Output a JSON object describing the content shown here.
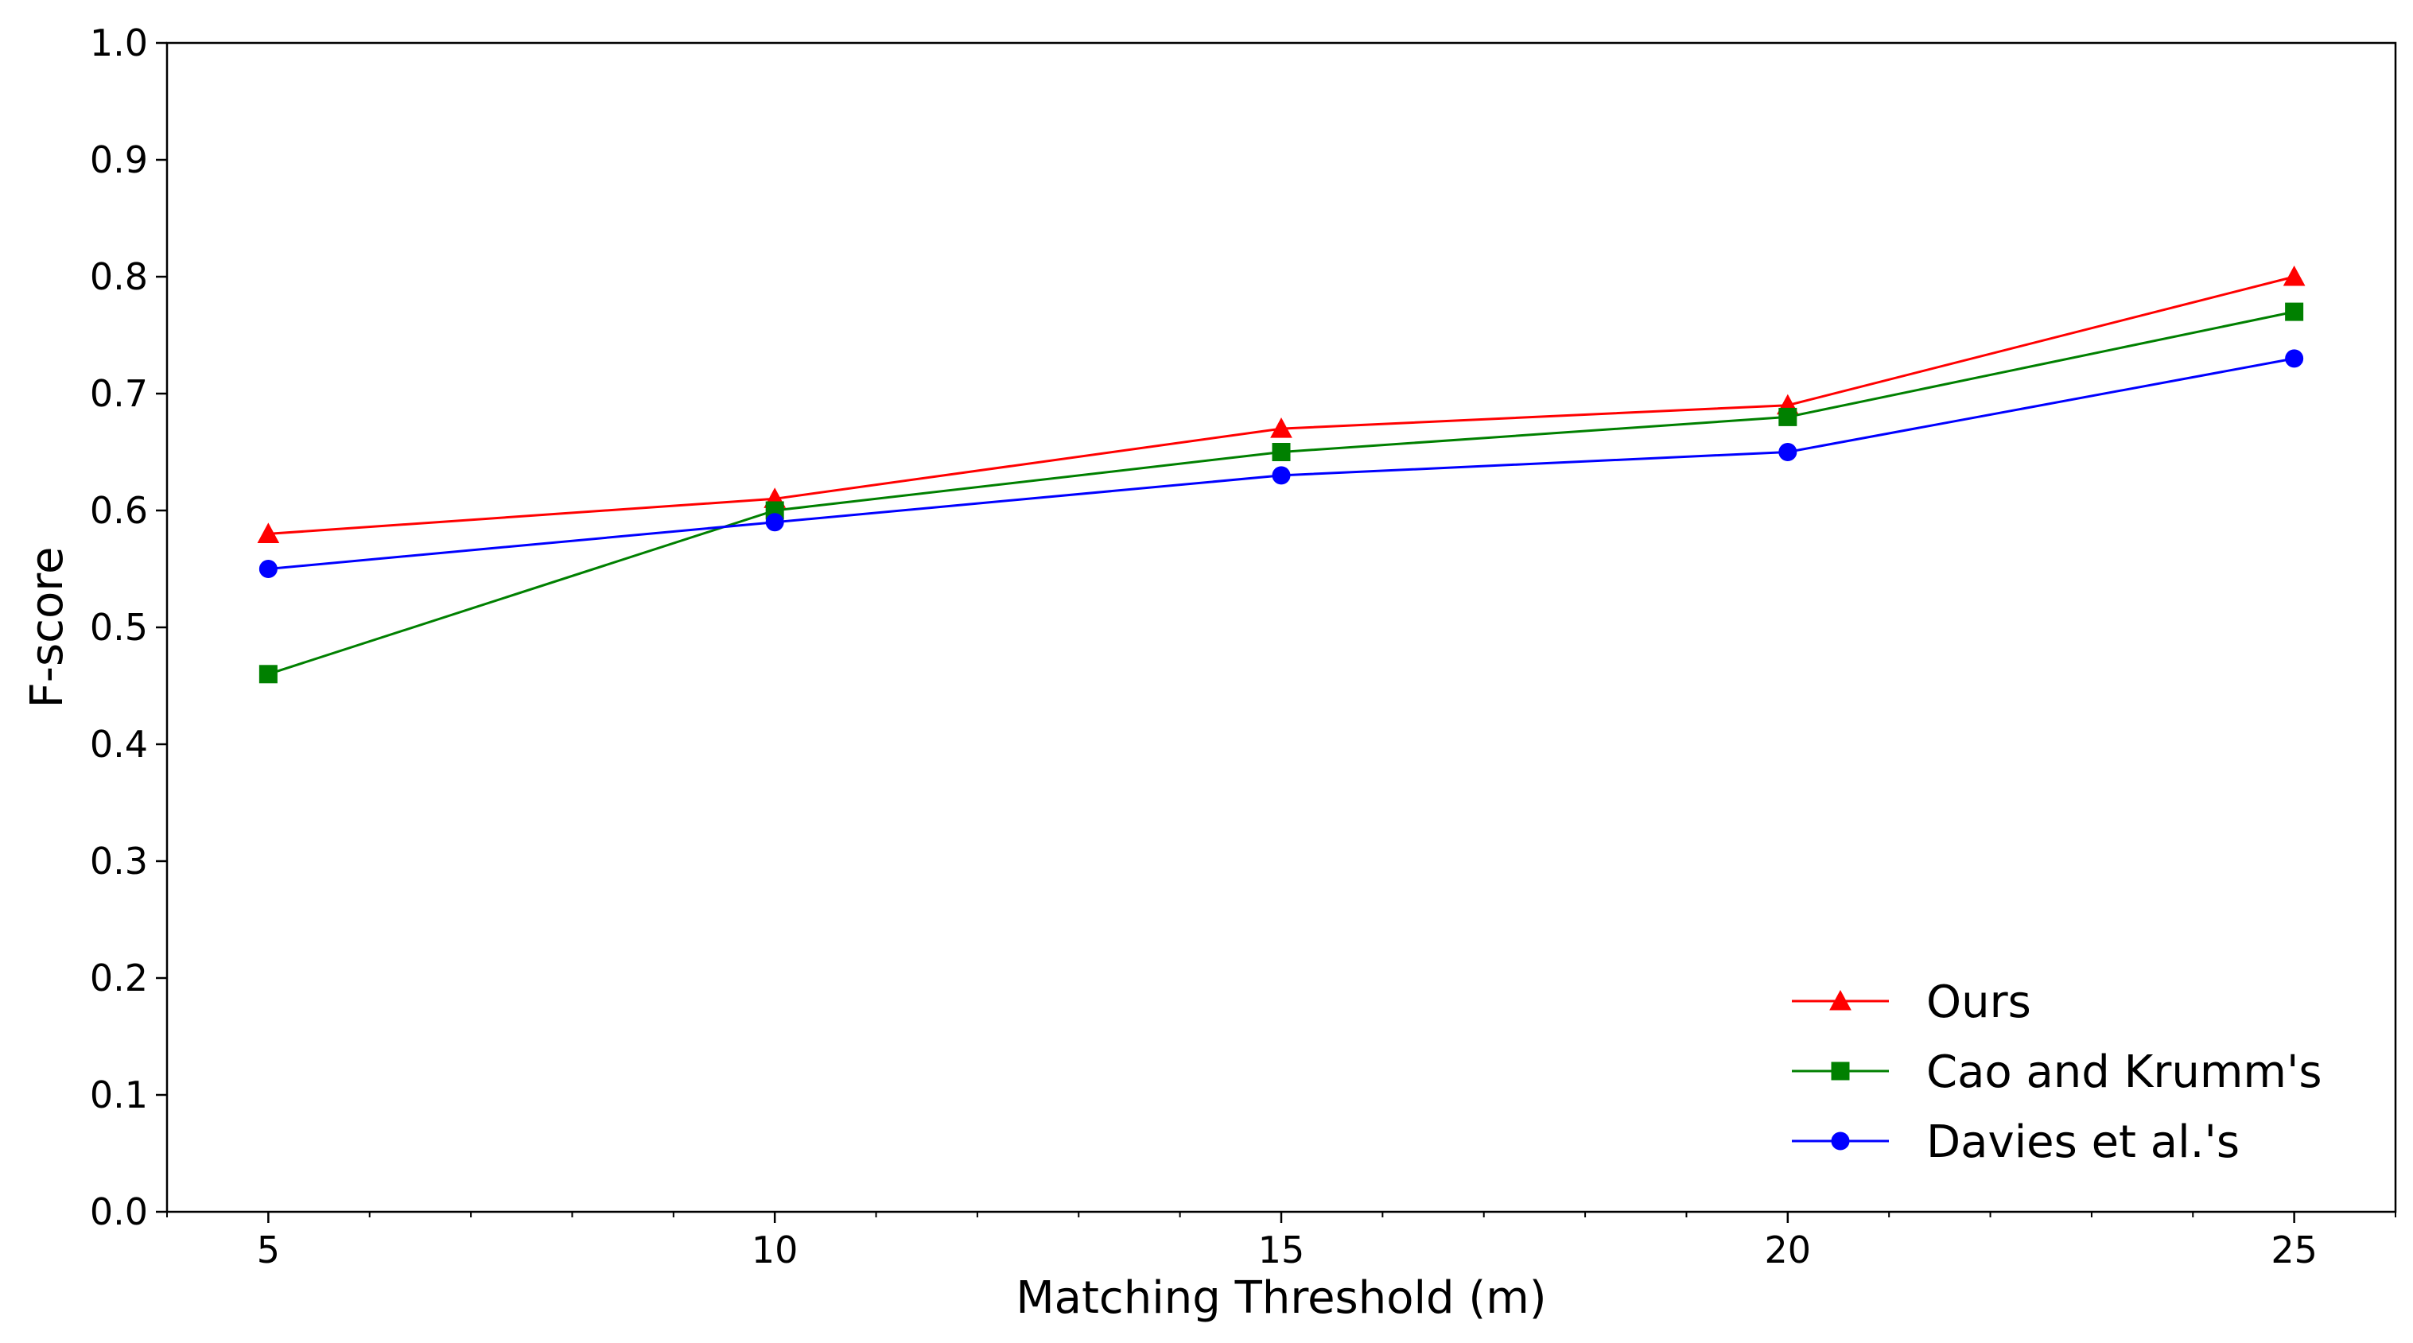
{
  "chart_data": {
    "type": "line",
    "title": "",
    "xlabel": "Matching Threshold (m)",
    "ylabel": "F-score",
    "xlim": [
      4,
      26
    ],
    "ylim": [
      0.0,
      1.0
    ],
    "x": [
      5,
      10,
      15,
      20,
      25
    ],
    "xticks": [
      "5",
      "10",
      "15",
      "20",
      "25"
    ],
    "yticks": [
      "0.0",
      "0.1",
      "0.2",
      "0.3",
      "0.4",
      "0.5",
      "0.6",
      "0.7",
      "0.8",
      "0.9",
      "1.0"
    ],
    "grid": false,
    "legend_position": "bottom-right",
    "series": [
      {
        "name": "Ours",
        "color": "#ff0000",
        "marker": "triangle",
        "values": [
          0.58,
          0.61,
          0.67,
          0.69,
          0.8
        ]
      },
      {
        "name": "Cao and Krumm's",
        "color": "#008000",
        "marker": "square",
        "values": [
          0.46,
          0.6,
          0.65,
          0.68,
          0.77
        ]
      },
      {
        "name": "Davies et al.'s",
        "color": "#0000ff",
        "marker": "circle",
        "values": [
          0.55,
          0.59,
          0.63,
          0.65,
          0.73
        ]
      }
    ]
  }
}
